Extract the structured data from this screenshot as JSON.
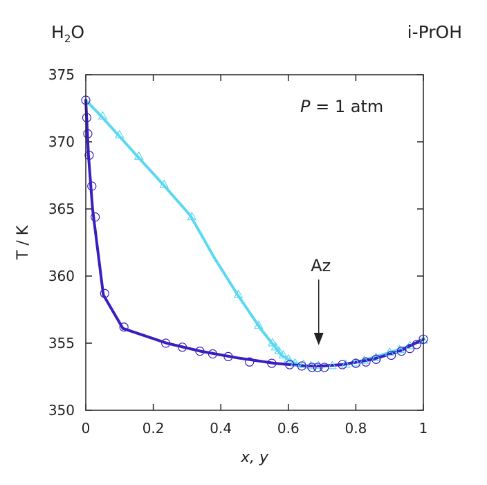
{
  "corner_left": {
    "base": "H",
    "sub": "2",
    "tail": "O"
  },
  "corner_right": "i-PrOH",
  "chart_data": {
    "type": "line",
    "xlabel": "x, y",
    "ylabel": "T / K",
    "xlim": [
      0,
      1
    ],
    "ylim": [
      350,
      375
    ],
    "x_ticks": [
      0,
      0.2,
      0.4,
      0.6,
      0.8,
      1
    ],
    "x_tick_labels": [
      "0",
      "0.2",
      "0.4",
      "0.6",
      "0.8",
      "1"
    ],
    "y_ticks": [
      350,
      355,
      360,
      365,
      370,
      375
    ],
    "y_tick_labels": [
      "350",
      "355",
      "360",
      "365",
      "370",
      "375"
    ],
    "grid": false,
    "annotations": {
      "pressure": {
        "italic": "P",
        "rest": " = 1 atm"
      },
      "azeotrope": {
        "text": "Az",
        "x": 0.69,
        "y": 353.3
      }
    },
    "series": [
      {
        "role": "liquid (x) model",
        "color": "#3a1fc0",
        "style": "line",
        "points": [
          [
            0,
            373.1
          ],
          [
            0.008,
            369.0
          ],
          [
            0.02,
            365.0
          ],
          [
            0.052,
            358.6
          ],
          [
            0.11,
            356.1
          ],
          [
            0.24,
            355.0
          ],
          [
            0.34,
            354.4
          ],
          [
            0.45,
            353.9
          ],
          [
            0.56,
            353.5
          ],
          [
            0.65,
            353.3
          ],
          [
            0.7,
            353.3
          ],
          [
            0.76,
            353.4
          ],
          [
            0.85,
            353.8
          ],
          [
            0.93,
            354.4
          ],
          [
            1.0,
            355.3
          ]
        ]
      },
      {
        "role": "liquid (x) data",
        "color": "#3a1fc0",
        "style": "circle",
        "points": [
          [
            0,
            373.1
          ],
          [
            0.003,
            371.8
          ],
          [
            0.006,
            370.6
          ],
          [
            0.01,
            369.0
          ],
          [
            0.018,
            366.7
          ],
          [
            0.028,
            364.4
          ],
          [
            0.056,
            358.7
          ],
          [
            0.113,
            356.2
          ],
          [
            0.237,
            355.0
          ],
          [
            0.286,
            354.7
          ],
          [
            0.338,
            354.4
          ],
          [
            0.376,
            354.2
          ],
          [
            0.422,
            354.0
          ],
          [
            0.485,
            353.6
          ],
          [
            0.551,
            353.5
          ],
          [
            0.604,
            353.4
          ],
          [
            0.64,
            353.3
          ],
          [
            0.67,
            353.2
          ],
          [
            0.687,
            353.2
          ],
          [
            0.707,
            353.2
          ],
          [
            0.76,
            353.4
          ],
          [
            0.8,
            353.5
          ],
          [
            0.83,
            353.6
          ],
          [
            0.86,
            353.8
          ],
          [
            0.905,
            354.1
          ],
          [
            0.935,
            354.4
          ],
          [
            0.96,
            354.6
          ],
          [
            0.98,
            354.9
          ],
          [
            1.0,
            355.3
          ]
        ]
      },
      {
        "role": "vapor (y) model",
        "color": "#5ad8f2",
        "style": "line",
        "points": [
          [
            0,
            373.1
          ],
          [
            0.05,
            371.8
          ],
          [
            0.1,
            370.4
          ],
          [
            0.15,
            369.0
          ],
          [
            0.23,
            366.8
          ],
          [
            0.31,
            364.5
          ],
          [
            0.38,
            361.4
          ],
          [
            0.45,
            358.6
          ],
          [
            0.52,
            356.0
          ],
          [
            0.58,
            354.1
          ],
          [
            0.62,
            353.5
          ],
          [
            0.65,
            353.3
          ],
          [
            0.7,
            353.3
          ],
          [
            0.76,
            353.4
          ],
          [
            0.82,
            353.7
          ],
          [
            0.9,
            354.3
          ],
          [
            0.96,
            354.8
          ],
          [
            1.0,
            355.3
          ]
        ]
      },
      {
        "role": "vapor (y) data",
        "color": "#5ad8f2",
        "style": "triangle",
        "points": [
          [
            0.05,
            371.9
          ],
          [
            0.1,
            370.5
          ],
          [
            0.157,
            368.9
          ],
          [
            0.232,
            366.8
          ],
          [
            0.314,
            364.4
          ],
          [
            0.452,
            358.6
          ],
          [
            0.512,
            356.3
          ],
          [
            0.553,
            355.0
          ],
          [
            0.562,
            354.7
          ],
          [
            0.572,
            354.4
          ],
          [
            0.585,
            354.1
          ],
          [
            0.6,
            353.8
          ],
          [
            0.62,
            353.5
          ],
          [
            0.645,
            353.4
          ],
          [
            0.667,
            353.3
          ],
          [
            0.69,
            353.3
          ],
          [
            0.73,
            353.3
          ],
          [
            0.77,
            353.4
          ],
          [
            0.8,
            353.5
          ],
          [
            0.825,
            353.7
          ],
          [
            0.86,
            353.9
          ],
          [
            0.9,
            354.3
          ],
          [
            0.93,
            354.5
          ],
          [
            0.96,
            354.8
          ],
          [
            1.0,
            355.2
          ]
        ]
      }
    ]
  }
}
